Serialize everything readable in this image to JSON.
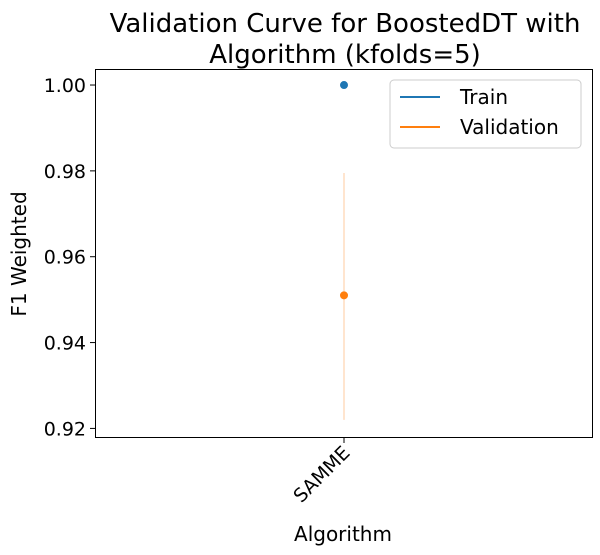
{
  "chart_data": {
    "type": "scatter",
    "title_line1": "Validation Curve for BoostedDT with",
    "title_line2": "Algorithm (kfolds=5)",
    "xlabel": "Algorithm",
    "ylabel": "F1 Weighted",
    "categories": [
      "SAMME"
    ],
    "yticks": [
      "0.92",
      "0.94",
      "0.96",
      "0.98",
      "1.00"
    ],
    "ylim": [
      0.918,
      1.0035
    ],
    "legend_position": "upper-right",
    "series": [
      {
        "name": "Train",
        "color": "#1f77b4",
        "values": [
          1.0
        ],
        "err_low": [
          1.0
        ],
        "err_high": [
          1.0
        ]
      },
      {
        "name": "Validation",
        "color": "#ff7f0e",
        "values": [
          0.951
        ],
        "err_low": [
          0.922
        ],
        "err_high": [
          0.9795
        ]
      }
    ]
  }
}
